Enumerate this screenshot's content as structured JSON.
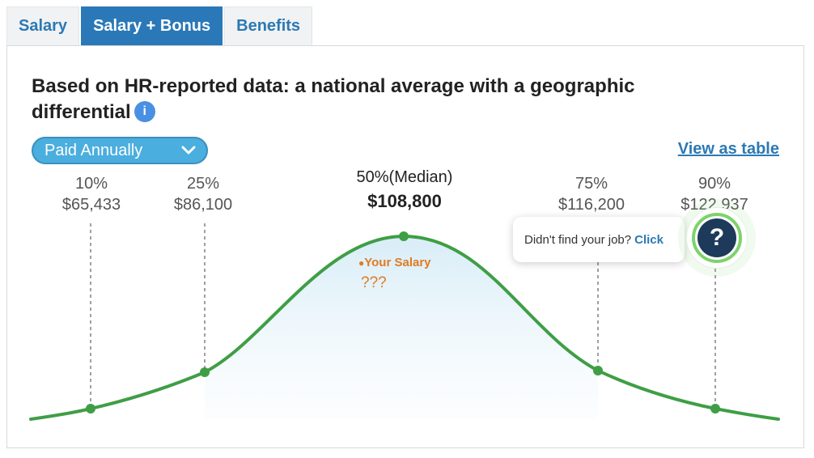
{
  "tabs": [
    {
      "label": "Salary",
      "active": false
    },
    {
      "label": "Salary + Bonus",
      "active": true
    },
    {
      "label": "Benefits",
      "active": false
    }
  ],
  "panel": {
    "heading": "Based on HR-reported data: a national average with a geographic differential",
    "info_icon": "i",
    "pay_select": {
      "value": "Paid Annually",
      "icon": "chevron-down-icon"
    },
    "view_table_link": "View as table"
  },
  "percentiles": [
    {
      "label": "10%",
      "value": "$65,433"
    },
    {
      "label": "25%",
      "value": "$86,100"
    },
    {
      "label": "50%(Median)",
      "value": "$108,800"
    },
    {
      "label": "75%",
      "value": "$116,200"
    },
    {
      "label": "90%",
      "value": "$122,937"
    }
  ],
  "your_salary": {
    "label": "Your Salary",
    "value": "???"
  },
  "help": {
    "text": "Didn't find your job?",
    "link": "Click",
    "icon": "?"
  },
  "colors": {
    "curve": "#3f9e45",
    "tab_active": "#2a78b8",
    "link": "#2b79b4",
    "your_salary": "#e07b22",
    "select_bg": "#4aaede"
  }
}
